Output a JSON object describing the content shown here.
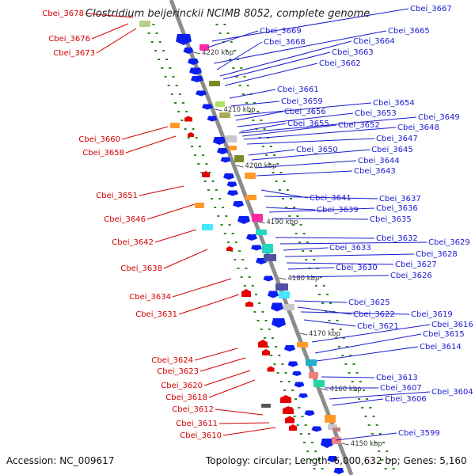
{
  "title": "Clostridium beijerinckii NCIMB 8052, complete genome",
  "footer": {
    "accession": "Accession: NC_009617",
    "summary": "Topology: circular; Length: 6,000,632 bp; Genes: 5,160"
  },
  "colors": {
    "backbone": "#8c8c8c",
    "forward_gene": "#0a1ef0",
    "reverse_gene": "#e60000",
    "tick_dot": "#2a8a1a",
    "label_forward": "#1a1ad0",
    "label_reverse": "#d40000"
  },
  "scale_ticks": [
    "4220 kbp",
    "4210 kbp",
    "4200 kbp",
    "4190 kbp",
    "4180 kbp",
    "4170 kbp",
    "4160 kbp",
    "4150 kbp"
  ],
  "reverse_labels": [
    "Cbei_3678",
    "Cbei_3676",
    "Cbei_3673",
    "Cbei_3660",
    "Cbei_3658",
    "Cbei_3651",
    "Cbei_3646",
    "Cbei_3642",
    "Cbei_3638",
    "Cbei_3634",
    "Cbei_3631",
    "Cbei_3624",
    "Cbei_3623",
    "Cbei_3620",
    "Cbei_3618",
    "Cbei_3612",
    "Cbei_3611",
    "Cbei_3610"
  ],
  "forward_labels": [
    "Cbei_3667",
    "Cbei_3669",
    "Cbei_3665",
    "Cbei_3668",
    "Cbei_3664",
    "Cbei_3663",
    "Cbei_3662",
    "Cbei_3661",
    "Cbei_3659",
    "Cbei_3654",
    "Cbei_3656",
    "Cbei_3653",
    "Cbei_3649",
    "Cbei_3655",
    "Cbei_3652",
    "Cbei_3648",
    "Cbei_3647",
    "Cbei_3650",
    "Cbei_3645",
    "Cbei_3644",
    "Cbei_3643",
    "Cbei_3641",
    "Cbei_3637",
    "Cbei_3639",
    "Cbei_3636",
    "Cbei_3635",
    "Cbei_3632",
    "Cbei_3629",
    "Cbei_3633",
    "Cbei_3628",
    "Cbei_3627",
    "Cbei_3630",
    "Cbei_3626",
    "Cbei_3625",
    "Cbei_3622",
    "Cbei_3619",
    "Cbei_3621",
    "Cbei_3616",
    "Cbei_3615",
    "Cbei_3614",
    "Cbei_3613",
    "Cbei_3607",
    "Cbei_3604",
    "Cbei_3606",
    "Cbei_3599"
  ]
}
